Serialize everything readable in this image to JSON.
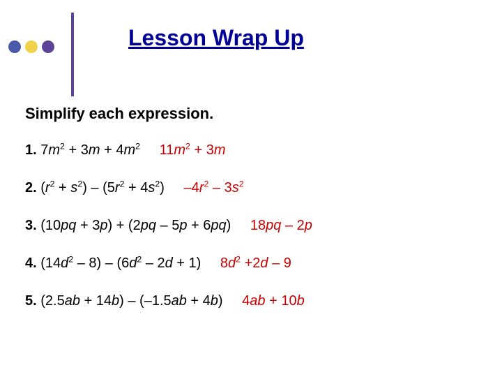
{
  "title": "Lesson Wrap Up",
  "title_color": "#000099",
  "bullets": [
    {
      "color": "#4b5aa8"
    },
    {
      "color": "#f2d24a"
    },
    {
      "color": "#5a4599"
    }
  ],
  "vline_color": "#5a4599",
  "instruction": "Simplify each expression.",
  "answer_color": "#cc0000",
  "body_fontsize": 20,
  "items": [
    {
      "num": "1.",
      "expr_html": "7<span class='ivar'>m</span><sup>2</sup> + 3<span class='ivar'>m</span> + 4<span class='ivar'>m</span><sup>2</sup>",
      "answer_html": "11<span class='ivar'>m</span><sup>2</sup> + 3<span class='ivar'>m</span>"
    },
    {
      "num": "2.",
      "expr_html": "(<span class='ivar'>r</span><sup>2</sup> + <span class='ivar'>s</span><sup>2</sup>) – (5<span class='ivar'>r</span><sup>2</sup> + 4<span class='ivar'>s</span><sup>2</sup>)",
      "answer_html": "–4<span class='ivar'>r</span><sup>2</sup> – 3<span class='ivar'>s</span><sup>2</sup>"
    },
    {
      "num": "3.",
      "expr_html": "(10<span class='ivar'>pq</span> + 3<span class='ivar'>p</span>) + (2<span class='ivar'>pq</span> – 5<span class='ivar'>p</span> + 6<span class='ivar'>pq</span>)",
      "answer_html": "18<span class='ivar'>pq</span> – 2<span class='ivar'>p</span>"
    },
    {
      "num": "4.",
      "expr_html": "(14<span class='ivar'>d</span><sup>2</sup> – 8) – (6<span class='ivar'>d</span><sup>2</sup> – 2<span class='ivar'>d</span> + 1)",
      "answer_html": "8<span class='ivar'>d</span><sup>2</sup> +2<span class='ivar'>d</span> – 9"
    },
    {
      "num": "5.",
      "expr_html": "(2.5<span class='ivar'>ab</span> + 14<span class='ivar'>b</span>) – (–1.5<span class='ivar'>ab</span> + 4<span class='ivar'>b</span>)",
      "answer_html": "4<span class='ivar'>ab</span> + 10<span class='ivar'>b</span>"
    }
  ]
}
